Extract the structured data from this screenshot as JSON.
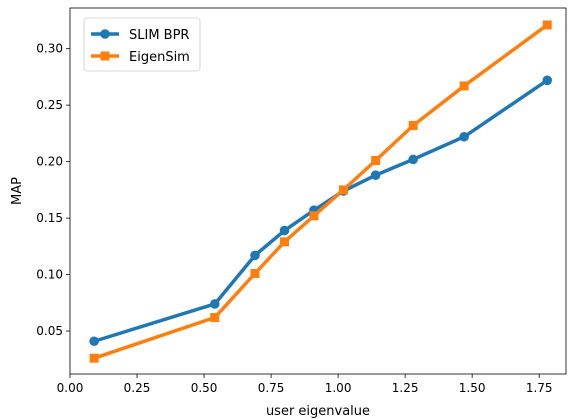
{
  "chart_data": {
    "type": "line",
    "title": "",
    "xlabel": "user eigenvalue",
    "ylabel": "MAP",
    "xlim": [
      0.0,
      1.85
    ],
    "ylim": [
      0.012,
      0.336
    ],
    "xticks": [
      0.0,
      0.25,
      0.5,
      0.75,
      1.0,
      1.25,
      1.5,
      1.75
    ],
    "xtick_labels": [
      "0.00",
      "0.25",
      "0.50",
      "0.75",
      "1.00",
      "1.25",
      "1.50",
      "1.75"
    ],
    "yticks": [
      0.05,
      0.1,
      0.15,
      0.2,
      0.25,
      0.3
    ],
    "ytick_labels": [
      "0.05",
      "0.10",
      "0.15",
      "0.20",
      "0.25",
      "0.30"
    ],
    "grid": false,
    "legend_position": "top-left",
    "series": [
      {
        "name": "SLIM BPR",
        "color": "#1f77b4",
        "marker": "circle",
        "x": [
          0.09,
          0.54,
          0.69,
          0.8,
          0.91,
          1.02,
          1.14,
          1.28,
          1.47,
          1.78
        ],
        "values": [
          0.041,
          0.074,
          0.117,
          0.139,
          0.157,
          0.174,
          0.188,
          0.202,
          0.222,
          0.272
        ]
      },
      {
        "name": "EigenSim",
        "color": "#ff7f0e",
        "marker": "square",
        "x": [
          0.09,
          0.54,
          0.69,
          0.8,
          0.91,
          1.02,
          1.14,
          1.28,
          1.47,
          1.78
        ],
        "values": [
          0.026,
          0.062,
          0.101,
          0.129,
          0.152,
          0.175,
          0.201,
          0.232,
          0.267,
          0.321
        ]
      }
    ]
  }
}
